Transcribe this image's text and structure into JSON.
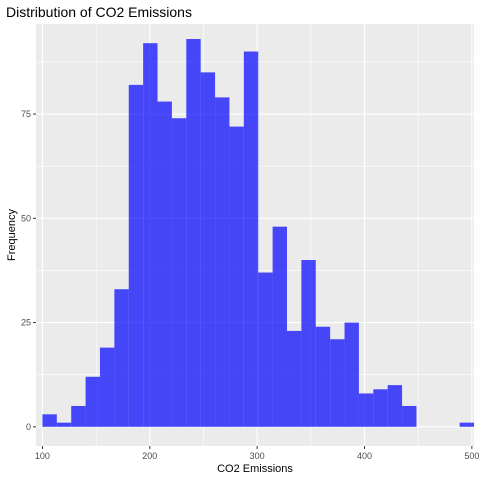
{
  "chart_data": {
    "type": "bar",
    "title": "Distribution of CO2 Emissions",
    "xlabel": "CO2 Emissions",
    "ylabel": "Frequency",
    "bin_width": 13.4,
    "bins": [
      {
        "x0": 100.0,
        "count": 3
      },
      {
        "x0": 113.4,
        "count": 1
      },
      {
        "x0": 126.8,
        "count": 5
      },
      {
        "x0": 140.2,
        "count": 12
      },
      {
        "x0": 153.6,
        "count": 19
      },
      {
        "x0": 167.0,
        "count": 33
      },
      {
        "x0": 180.4,
        "count": 82
      },
      {
        "x0": 193.8,
        "count": 92
      },
      {
        "x0": 207.2,
        "count": 78
      },
      {
        "x0": 220.6,
        "count": 74
      },
      {
        "x0": 234.0,
        "count": 93
      },
      {
        "x0": 247.4,
        "count": 85
      },
      {
        "x0": 260.8,
        "count": 79
      },
      {
        "x0": 274.2,
        "count": 72
      },
      {
        "x0": 287.6,
        "count": 90
      },
      {
        "x0": 301.0,
        "count": 37
      },
      {
        "x0": 314.4,
        "count": 48
      },
      {
        "x0": 327.8,
        "count": 23
      },
      {
        "x0": 341.2,
        "count": 40
      },
      {
        "x0": 354.6,
        "count": 24
      },
      {
        "x0": 368.0,
        "count": 21
      },
      {
        "x0": 381.4,
        "count": 25
      },
      {
        "x0": 394.8,
        "count": 8
      },
      {
        "x0": 408.2,
        "count": 9
      },
      {
        "x0": 421.6,
        "count": 10
      },
      {
        "x0": 435.0,
        "count": 5
      },
      {
        "x0": 448.4,
        "count": 0
      },
      {
        "x0": 461.8,
        "count": 0
      },
      {
        "x0": 475.2,
        "count": 0
      },
      {
        "x0": 488.6,
        "count": 1
      }
    ],
    "xlim": [
      94,
      502
    ],
    "ylim": [
      -4.6,
      96.6
    ],
    "x_ticks": [
      100,
      200,
      300,
      400,
      500
    ],
    "y_ticks": [
      0,
      25,
      50,
      75
    ],
    "bar_color": "#0000ff",
    "bar_opacity": 0.7,
    "panel_background": "#ebebeb",
    "grid": true,
    "legend": "none"
  }
}
